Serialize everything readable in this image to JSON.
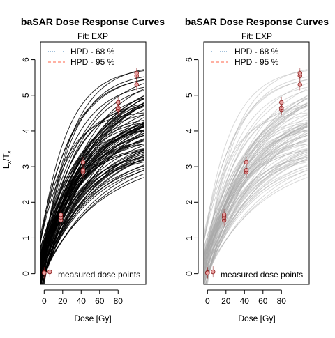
{
  "figure": {
    "y_axis_label_main": "L",
    "y_axis_label_sub_x": "x",
    "y_axis_label_slash": "/T",
    "y_axis_label_sub_x2": "x"
  },
  "colors": {
    "curve_dark": "#000000",
    "curve_light": "#a9a9a9",
    "point_fill": "#e8a0a0",
    "point_stroke": "#8b1a1a",
    "hpd68": "#4682b4",
    "hpd95": "#ff6347",
    "frame": "#000000"
  },
  "chart_data": [
    {
      "type": "line",
      "title": "baSAR Dose Response Curves",
      "subtitle": "Fit: EXP",
      "xlabel": "Dose [Gy]",
      "ylabel": "Lx/Tx",
      "xlim": [
        -4,
        110
      ],
      "ylim": [
        -0.3,
        6.5
      ],
      "x_ticks": [
        0,
        20,
        40,
        60,
        80
      ],
      "y_ticks": [
        0,
        1,
        2,
        3,
        4,
        5,
        6
      ],
      "legend_position": "top-left",
      "legend": [
        {
          "label": "HPD - 68 %",
          "style": "dotted",
          "color": "#4682b4"
        },
        {
          "label": "HPD - 95 %",
          "style": "dashed",
          "color": "#ff6347"
        }
      ],
      "annotation": "measured dose points",
      "curve_style": "dark",
      "curve_ensemble": {
        "model": "a*(1-exp(-(x+c)/b))",
        "count": 90
      },
      "points": [
        {
          "x": 0,
          "y": 0.03
        },
        {
          "x": 0,
          "y": 0.02
        },
        {
          "x": 6,
          "y": 0.05
        },
        {
          "x": 18,
          "y": 1.5
        },
        {
          "x": 18,
          "y": 1.58
        },
        {
          "x": 18,
          "y": 1.65
        },
        {
          "x": 42,
          "y": 2.85
        },
        {
          "x": 42,
          "y": 2.9
        },
        {
          "x": 42,
          "y": 3.12
        },
        {
          "x": 80,
          "y": 4.6
        },
        {
          "x": 80,
          "y": 4.65
        },
        {
          "x": 80,
          "y": 4.8
        },
        {
          "x": 100,
          "y": 5.3
        },
        {
          "x": 100,
          "y": 5.55
        },
        {
          "x": 100,
          "y": 5.62
        }
      ]
    },
    {
      "type": "line",
      "title": "baSAR Dose Response Curves",
      "subtitle": "Fit: EXP",
      "xlabel": "Dose [Gy]",
      "ylabel": "",
      "xlim": [
        -4,
        110
      ],
      "ylim": [
        -0.3,
        6.5
      ],
      "x_ticks": [
        0,
        20,
        40,
        60,
        80
      ],
      "y_ticks": [
        0,
        1,
        2,
        3,
        4,
        5,
        6
      ],
      "legend_position": "top-left",
      "legend": [
        {
          "label": "HPD - 68 %",
          "style": "dotted",
          "color": "#4682b4"
        },
        {
          "label": "HPD - 95 %",
          "style": "dashed",
          "color": "#ff6347"
        }
      ],
      "annotation": "measured dose points",
      "curve_style": "light",
      "curve_ensemble": {
        "model": "a*(1-exp(-(x+c)/b))",
        "count": 90
      },
      "points": [
        {
          "x": 0,
          "y": 0.03
        },
        {
          "x": 0,
          "y": 0.02
        },
        {
          "x": 6,
          "y": 0.05
        },
        {
          "x": 18,
          "y": 1.5
        },
        {
          "x": 18,
          "y": 1.58
        },
        {
          "x": 18,
          "y": 1.65
        },
        {
          "x": 42,
          "y": 2.85
        },
        {
          "x": 42,
          "y": 2.9
        },
        {
          "x": 42,
          "y": 3.12
        },
        {
          "x": 80,
          "y": 4.6
        },
        {
          "x": 80,
          "y": 4.65
        },
        {
          "x": 80,
          "y": 4.8
        },
        {
          "x": 100,
          "y": 5.3
        },
        {
          "x": 100,
          "y": 5.55
        },
        {
          "x": 100,
          "y": 5.62
        }
      ]
    }
  ]
}
